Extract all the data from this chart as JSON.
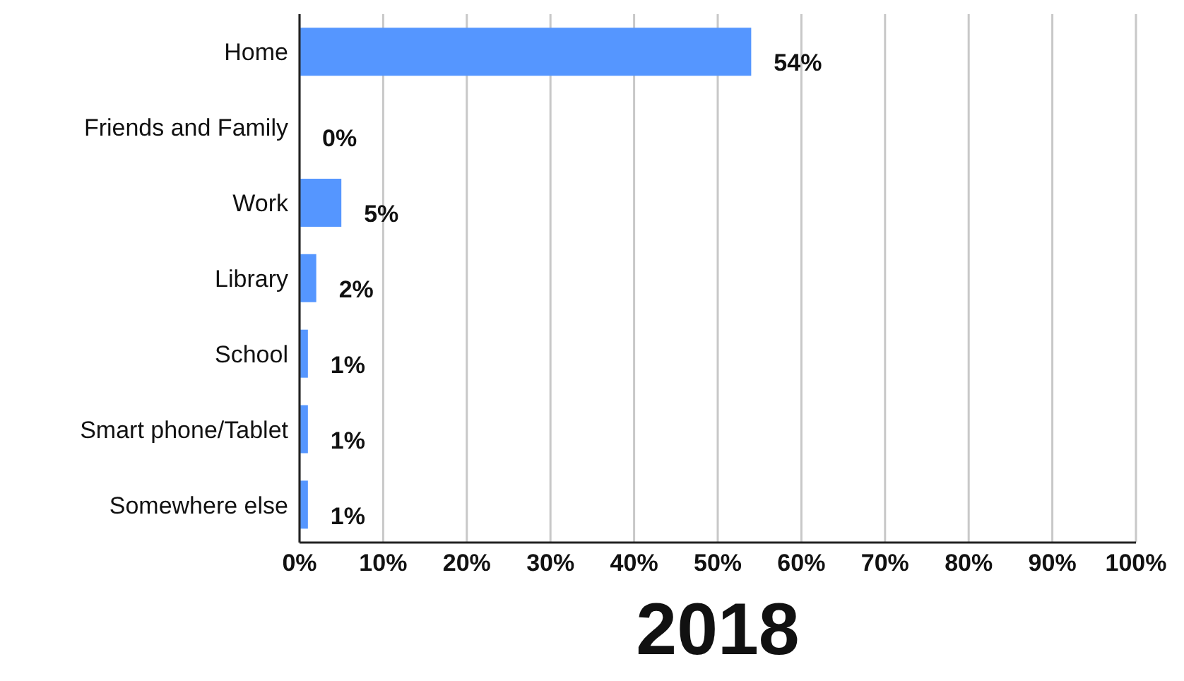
{
  "chart_data": {
    "type": "bar",
    "orientation": "horizontal",
    "title": "2018",
    "categories": [
      "Home",
      "Friends and Family",
      "Work",
      "Library",
      "School",
      "Smart phone/Tablet",
      "Somewhere else"
    ],
    "values": [
      54,
      0,
      5,
      2,
      1,
      1,
      1
    ],
    "value_labels": [
      "54%",
      "0%",
      "5%",
      "2%",
      "1%",
      "1%",
      "1%"
    ],
    "color": "#5596ff",
    "xlim": [
      0,
      100
    ],
    "xticks": [
      {
        "value": 0,
        "label": "0%"
      },
      {
        "value": 10,
        "label": "10%"
      },
      {
        "value": 20,
        "label": "20%"
      },
      {
        "value": 30,
        "label": "30%"
      },
      {
        "value": 40,
        "label": "40%"
      },
      {
        "value": 50,
        "label": "50%"
      },
      {
        "value": 60,
        "label": "60%"
      },
      {
        "value": 70,
        "label": "70%"
      },
      {
        "value": 80,
        "label": "80%"
      },
      {
        "value": 90,
        "label": "90%"
      },
      {
        "value": 100,
        "label": "100%"
      }
    ],
    "grid": "x"
  }
}
